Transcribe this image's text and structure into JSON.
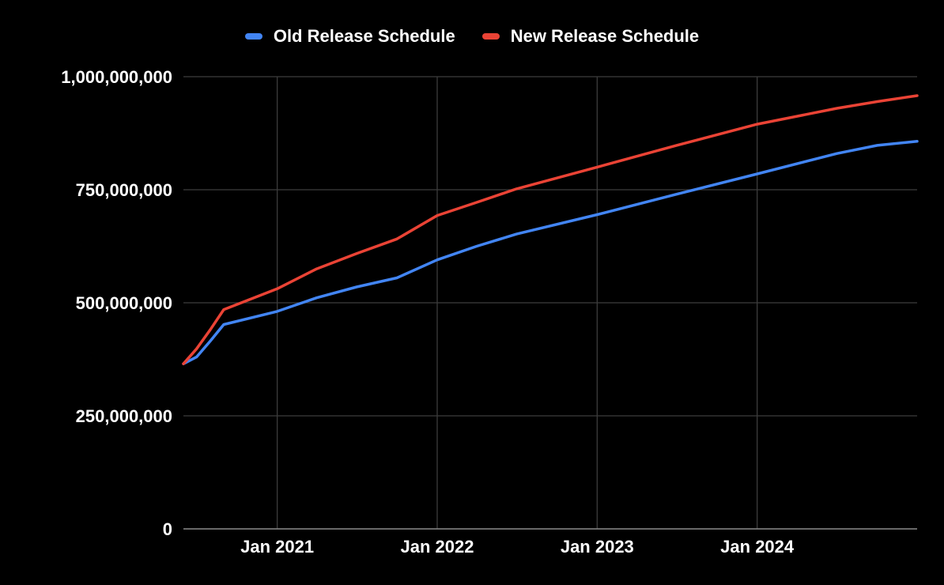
{
  "chart_data": {
    "type": "line",
    "title": "",
    "xlabel": "",
    "ylabel": "",
    "x_range": [
      "2020-06-01",
      "2024-12-31"
    ],
    "ylim": [
      0,
      1000000000
    ],
    "y_ticks": [
      0,
      250000000,
      500000000,
      750000000,
      1000000000
    ],
    "y_tick_labels": [
      "0",
      "250,000,000",
      "500,000,000",
      "750,000,000",
      "1,000,000,000"
    ],
    "x_ticks": [
      "2021-01-01",
      "2022-01-01",
      "2023-01-01",
      "2024-01-01"
    ],
    "x_tick_labels": [
      "Jan 2021",
      "Jan 2022",
      "Jan 2023",
      "Jan 2024"
    ],
    "grid": true,
    "legend_position": "top",
    "background": "#000000",
    "series": [
      {
        "name": "Old Release Schedule",
        "color": "#4285f4",
        "points": [
          [
            "2020-06-01",
            365000000
          ],
          [
            "2020-07-01",
            380000000
          ],
          [
            "2020-08-01",
            415000000
          ],
          [
            "2020-09-01",
            452000000
          ],
          [
            "2021-01-01",
            481000000
          ],
          [
            "2021-04-01",
            511000000
          ],
          [
            "2021-07-01",
            535000000
          ],
          [
            "2021-10-01",
            555000000
          ],
          [
            "2022-01-01",
            595000000
          ],
          [
            "2022-04-01",
            625000000
          ],
          [
            "2022-07-01",
            652000000
          ],
          [
            "2023-01-01",
            695000000
          ],
          [
            "2023-07-01",
            740000000
          ],
          [
            "2024-01-01",
            785000000
          ],
          [
            "2024-07-01",
            830000000
          ],
          [
            "2024-10-01",
            848000000
          ],
          [
            "2024-12-31",
            857000000
          ]
        ]
      },
      {
        "name": "New Release Schedule",
        "color": "#ea4335",
        "points": [
          [
            "2020-06-01",
            365000000
          ],
          [
            "2020-07-01",
            398000000
          ],
          [
            "2020-08-01",
            440000000
          ],
          [
            "2020-09-01",
            485000000
          ],
          [
            "2021-01-01",
            531000000
          ],
          [
            "2021-04-01",
            575000000
          ],
          [
            "2021-07-01",
            609000000
          ],
          [
            "2021-10-01",
            641000000
          ],
          [
            "2022-01-01",
            693000000
          ],
          [
            "2022-04-01",
            722000000
          ],
          [
            "2022-07-01",
            752000000
          ],
          [
            "2023-01-01",
            800000000
          ],
          [
            "2023-07-01",
            848000000
          ],
          [
            "2024-01-01",
            895000000
          ],
          [
            "2024-07-01",
            930000000
          ],
          [
            "2024-10-01",
            945000000
          ],
          [
            "2024-12-31",
            958000000
          ]
        ]
      }
    ]
  }
}
